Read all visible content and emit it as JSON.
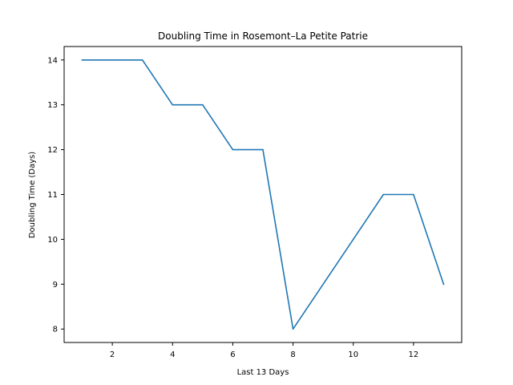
{
  "chart_data": {
    "type": "line",
    "title": "Doubling Time in  Rosemont–La Petite Patrie",
    "xlabel": "Last 13 Days",
    "ylabel": "Doubling Time (Days)",
    "x": [
      1,
      2,
      3,
      4,
      5,
      6,
      7,
      8,
      9,
      10,
      11,
      12,
      13
    ],
    "series": [
      {
        "values": [
          14,
          14,
          14,
          13,
          13,
          12,
          12,
          8,
          9,
          10,
          11,
          11,
          9
        ],
        "color": "#1f77b4"
      }
    ],
    "xlim": [
      0.4,
      13.6
    ],
    "ylim": [
      7.7,
      14.3
    ],
    "xticks": [
      2,
      4,
      6,
      8,
      10,
      12
    ],
    "xtick_labels": [
      "2",
      "4",
      "6",
      "8",
      "10",
      "12"
    ],
    "yticks": [
      8,
      9,
      10,
      11,
      12,
      13,
      14
    ],
    "ytick_labels": [
      "8",
      "9",
      "10",
      "11",
      "12",
      "13",
      "14"
    ],
    "grid": false,
    "legend": false
  }
}
